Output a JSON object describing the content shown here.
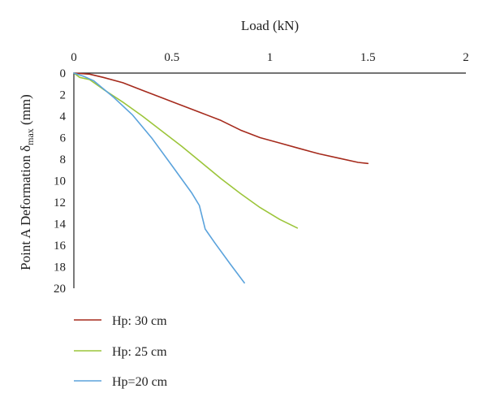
{
  "chart_data": {
    "type": "line",
    "xlabel": "Load (kN)",
    "ylabel": {
      "prefix": "Point A Deformation δ",
      "subscript": "max",
      "suffix": " (mm)"
    },
    "x_axis_position": "top",
    "y_inverted": true,
    "xlim": [
      0,
      2
    ],
    "ylim": [
      0,
      20
    ],
    "x_ticks": [
      "0",
      "0.5",
      "1",
      "1.5",
      "2"
    ],
    "y_ticks": [
      "0",
      "2",
      "4",
      "6",
      "8",
      "10",
      "12",
      "14",
      "16",
      "18",
      "20"
    ],
    "grid": false,
    "legend": "bottom-left",
    "series": [
      {
        "name": "Hp: 30 cm",
        "color": "#a52a1c",
        "points": [
          [
            0,
            0
          ],
          [
            0.08,
            0.1
          ],
          [
            0.15,
            0.4
          ],
          [
            0.25,
            0.9
          ],
          [
            0.35,
            1.6
          ],
          [
            0.45,
            2.3
          ],
          [
            0.55,
            3.0
          ],
          [
            0.65,
            3.7
          ],
          [
            0.75,
            4.4
          ],
          [
            0.85,
            5.3
          ],
          [
            0.95,
            6.0
          ],
          [
            1.05,
            6.5
          ],
          [
            1.15,
            7.0
          ],
          [
            1.25,
            7.5
          ],
          [
            1.35,
            7.9
          ],
          [
            1.45,
            8.3
          ],
          [
            1.5,
            8.4
          ]
        ]
      },
      {
        "name": "Hp: 25 cm",
        "color": "#9cc53a",
        "points": [
          [
            0,
            0
          ],
          [
            0.03,
            0.4
          ],
          [
            0.08,
            0.6
          ],
          [
            0.15,
            1.5
          ],
          [
            0.25,
            2.7
          ],
          [
            0.35,
            4.0
          ],
          [
            0.45,
            5.4
          ],
          [
            0.55,
            6.8
          ],
          [
            0.65,
            8.3
          ],
          [
            0.75,
            9.8
          ],
          [
            0.85,
            11.2
          ],
          [
            0.95,
            12.5
          ],
          [
            1.05,
            13.6
          ],
          [
            1.14,
            14.4
          ]
        ]
      },
      {
        "name": "Hp=20 cm",
        "color": "#5ba3dc",
        "points": [
          [
            0,
            0
          ],
          [
            0.05,
            0.3
          ],
          [
            0.1,
            0.7
          ],
          [
            0.2,
            2.2
          ],
          [
            0.3,
            3.9
          ],
          [
            0.4,
            6.1
          ],
          [
            0.5,
            8.6
          ],
          [
            0.6,
            11.1
          ],
          [
            0.64,
            12.3
          ],
          [
            0.67,
            14.5
          ],
          [
            0.72,
            15.8
          ],
          [
            0.8,
            17.8
          ],
          [
            0.87,
            19.5
          ]
        ]
      }
    ]
  }
}
